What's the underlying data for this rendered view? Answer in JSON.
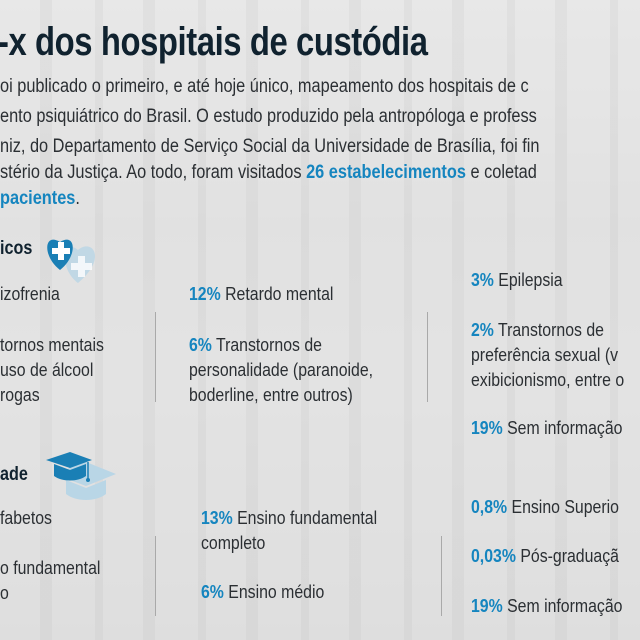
{
  "title": "-x dos hospitais de custódia",
  "intro": {
    "lines": [
      "oi publicado o primeiro, e até hoje único, mapeamento dos hospitais de c",
      "ento psiquiátrico do Brasil. O estudo produzido pela antropóloga e profess",
      "niz, do Departamento de Serviço Social da Universidade de Brasília, foi fin"
    ],
    "line4_pre": "stério da Justiça. Ao todo, foram visitados ",
    "line4_hl": "26 estabelecimentos",
    "line4_post": " e coletad",
    "line5_hl": "pacientes",
    "line5_post": "."
  },
  "colors": {
    "accent": "#1585bf",
    "title": "#10222f"
  },
  "diagnosticos": {
    "heading": "icos",
    "icon": "heart-plus-icon",
    "items": [
      {
        "pct": "",
        "text": "izofrenia"
      },
      {
        "pct": "",
        "text": "tornos mentais\nuso de álcool\nrogas"
      },
      {
        "pct": "12%",
        "text": " Retardo mental"
      },
      {
        "pct": "6%",
        "text": " Transtornos de\npersonalidade (paranoide,\nboderline, entre outros)"
      },
      {
        "pct": "3%",
        "text": " Epilepsia"
      },
      {
        "pct": "2%",
        "text": " Transtornos de\npreferência sexual (v\nexibicionismo, entre o"
      },
      {
        "pct": "19%",
        "text": " Sem informação"
      }
    ]
  },
  "escolaridade": {
    "heading": "ade",
    "icon": "graduation-cap-icon",
    "items": [
      {
        "pct": "",
        "text": "fabetos"
      },
      {
        "pct": "",
        "text": "o fundamental\no"
      },
      {
        "pct": "13%",
        "text": " Ensino fundamental\ncompleto"
      },
      {
        "pct": "6%",
        "text": " Ensino médio"
      },
      {
        "pct": "0,8%",
        "text": " Ensino Superio"
      },
      {
        "pct": "0,03%",
        "text": " Pós-graduaçã"
      },
      {
        "pct": "19%",
        "text": " Sem informação"
      }
    ]
  }
}
